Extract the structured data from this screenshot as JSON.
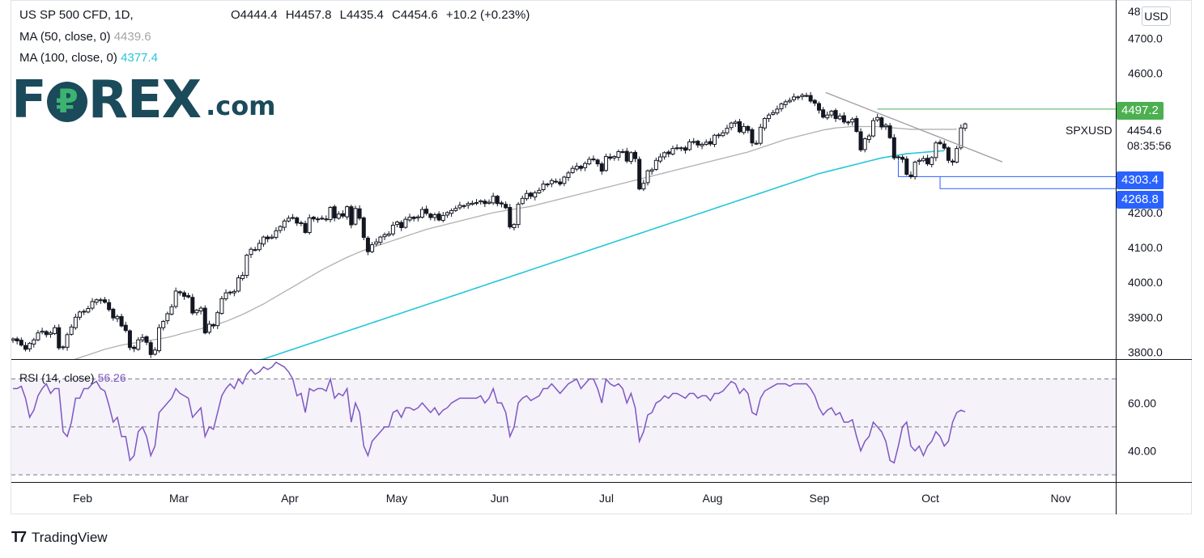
{
  "legend": {
    "symbol_line": "US SP 500 CFD, 1D,",
    "ohlc": {
      "o": "O4444.4",
      "h": "H4457.8",
      "l": "L4435.4",
      "c": "C4454.6",
      "chg": "+10.2 (+0.23%)"
    },
    "ma50_label": "MA (50, close, 0)",
    "ma50_value": "4439.6",
    "ma100_label": "MA (100, close, 0)",
    "ma100_value": "4377.4",
    "rsi_label": "RSI (14, close)",
    "rsi_value": "56.26"
  },
  "logo": {
    "pre": "F",
    "post": "REX",
    "suffix": ".com"
  },
  "currency_button": "USD",
  "symbol": "SPXUSD",
  "last_price": "4454.6",
  "countdown": "08:35:56",
  "price_tags": [
    {
      "label": "4497.2",
      "color": "#4caf50",
      "value": 4497.2
    },
    {
      "label": "4303.4",
      "color": "#2962ff",
      "value": 4303.4
    },
    {
      "label": "4268.8",
      "color": "#2962ff",
      "value": 4268.8
    }
  ],
  "branding": "TradingView",
  "chart_data": {
    "type": "candlestick",
    "title": "US SP 500 CFD, 1D",
    "price_axis": {
      "ticks": [
        "4700.0",
        "4600.0",
        "4200.0",
        "4100.0",
        "4000.0",
        "3900.0",
        "3800.0"
      ],
      "tick_values": [
        4700,
        4600,
        4200,
        4100,
        4000,
        3900,
        3800
      ],
      "ylim": [
        3780,
        4810
      ],
      "top_partial": "48"
    },
    "x_axis": {
      "labels": [
        "Feb",
        "Mar",
        "Apr",
        "May",
        "Jun",
        "Jul",
        "Aug",
        "Sep",
        "Oct",
        "Nov"
      ]
    },
    "close_series": [
      3838,
      3832,
      3820,
      3808,
      3825,
      3835,
      3855,
      3860,
      3850,
      3855,
      3870,
      3812,
      3815,
      3850,
      3872,
      3900,
      3915,
      3916,
      3925,
      3945,
      3950,
      3948,
      3943,
      3922,
      3898,
      3902,
      3875,
      3862,
      3813,
      3810,
      3835,
      3842,
      3828,
      3793,
      3806,
      3870,
      3888,
      3910,
      3930,
      3975,
      3970,
      3960,
      3958,
      3912,
      3920,
      3926,
      3855,
      3880,
      3875,
      3913,
      3953,
      3970,
      3971,
      3974,
      4013,
      4020,
      4078,
      4095,
      4093,
      4112,
      4130,
      4125,
      4130,
      4148,
      4160,
      4176,
      4184,
      4186,
      4170,
      4171,
      4143,
      4185,
      4182,
      4182,
      4184,
      4180,
      4215,
      4185,
      4196,
      4190,
      4217,
      4165,
      4212,
      4184,
      4129,
      4088,
      4108,
      4116,
      4130,
      4137,
      4139,
      4164,
      4173,
      4157,
      4181,
      4187,
      4183,
      4188,
      4209,
      4198,
      4186,
      4194,
      4179,
      4192,
      4200,
      4206,
      4212,
      4221,
      4220,
      4226,
      4227,
      4229,
      4234,
      4226,
      4230,
      4247,
      4226,
      4225,
      4214,
      4159,
      4166,
      4224,
      4241,
      4255,
      4247,
      4257,
      4264,
      4282,
      4282,
      4292,
      4288,
      4282,
      4302,
      4314,
      4327,
      4333,
      4327,
      4341,
      4353,
      4353,
      4340,
      4319,
      4361,
      4356,
      4361,
      4375,
      4374,
      4348,
      4372,
      4355,
      4268,
      4284,
      4320,
      4323,
      4350,
      4360,
      4372,
      4369,
      4384,
      4386,
      4386,
      4379,
      4403,
      4404,
      4394,
      4396,
      4402,
      4397,
      4422,
      4423,
      4429,
      4442,
      4457,
      4460,
      4432,
      4447,
      4436,
      4400,
      4398,
      4445,
      4470,
      4480,
      4487,
      4497,
      4512,
      4518,
      4522,
      4532,
      4532,
      4537,
      4536,
      4520,
      4514,
      4494,
      4474,
      4480,
      4491,
      4470,
      4477,
      4460,
      4460,
      4468,
      4433,
      4380,
      4412,
      4420,
      4464,
      4473,
      4446,
      4451,
      4415,
      4357,
      4360,
      4353,
      4310,
      4303,
      4345,
      4350,
      4355,
      4340,
      4358,
      4400,
      4398,
      4385,
      4350,
      4345,
      4384,
      4443,
      4454.6
    ],
    "ma50": [
      3720,
      3724,
      3728,
      3732,
      3736,
      3740,
      3744,
      3748,
      3752,
      3756,
      3760,
      3764,
      3768,
      3772,
      3776,
      3780,
      3784,
      3788,
      3792,
      3796,
      3800,
      3804,
      3808,
      3811,
      3814,
      3817,
      3820,
      3822,
      3824,
      3826,
      3828,
      3830,
      3832,
      3834,
      3836,
      3838,
      3840,
      3842,
      3845,
      3848,
      3852,
      3855,
      3858,
      3861,
      3864,
      3867,
      3870,
      3873,
      3876,
      3880,
      3884,
      3888,
      3893,
      3898,
      3903,
      3908,
      3914,
      3920,
      3926,
      3932,
      3938,
      3945,
      3952,
      3959,
      3966,
      3973,
      3980,
      3987,
      3994,
      4001,
      4008,
      4015,
      4022,
      4029,
      4036,
      4042,
      4048,
      4054,
      4060,
      4066,
      4072,
      4077,
      4082,
      4087,
      4092,
      4096,
      4100,
      4104,
      4108,
      4112,
      4116,
      4120,
      4124,
      4128,
      4132,
      4136,
      4140,
      4144,
      4148,
      4152,
      4155,
      4158,
      4161,
      4164,
      4167,
      4170,
      4173,
      4176,
      4179,
      4182,
      4185,
      4188,
      4191,
      4194,
      4197,
      4200,
      4202,
      4204,
      4206,
      4208,
      4210,
      4212,
      4214,
      4216,
      4218,
      4221,
      4224,
      4227,
      4230,
      4233,
      4236,
      4239,
      4242,
      4245,
      4248,
      4251,
      4254,
      4257,
      4260,
      4263,
      4266,
      4269,
      4272,
      4275,
      4278,
      4281,
      4284,
      4287,
      4290,
      4293,
      4296,
      4299,
      4302,
      4305,
      4308,
      4311,
      4314,
      4317,
      4320,
      4323,
      4326,
      4329,
      4332,
      4335,
      4338,
      4341,
      4344,
      4347,
      4350,
      4353,
      4356,
      4359,
      4362,
      4365,
      4368,
      4371,
      4374,
      4378,
      4382,
      4386,
      4390,
      4394,
      4398,
      4402,
      4406,
      4410,
      4413,
      4416,
      4419,
      4422,
      4425,
      4428,
      4431,
      4434,
      4437,
      4439,
      4441,
      4443,
      4444,
      4445,
      4446,
      4447,
      4447,
      4447,
      4447,
      4447,
      4447,
      4447,
      4446,
      4445,
      4444,
      4443,
      4442,
      4441,
      4440,
      4439,
      4439,
      4439,
      4439,
      4439,
      4439,
      4439,
      4439,
      4439,
      4439,
      4439,
      4439.6
    ],
    "ma100": [
      3600,
      3603,
      3606,
      3609,
      3612,
      3615,
      3618,
      3621,
      3624,
      3627,
      3630,
      3633,
      3636,
      3639,
      3642,
      3645,
      3648,
      3651,
      3654,
      3657,
      3660,
      3663,
      3666,
      3669,
      3672,
      3675,
      3678,
      3681,
      3684,
      3687,
      3690,
      3693,
      3696,
      3699,
      3702,
      3705,
      3708,
      3711,
      3714,
      3717,
      3720,
      3723,
      3726,
      3729,
      3732,
      3735,
      3738,
      3741,
      3744,
      3747,
      3750,
      3753,
      3756,
      3759,
      3762,
      3765,
      3768,
      3771,
      3774,
      3777,
      3780,
      3784,
      3788,
      3792,
      3796,
      3800,
      3804,
      3808,
      3812,
      3816,
      3820,
      3824,
      3828,
      3832,
      3836,
      3840,
      3844,
      3848,
      3852,
      3856,
      3860,
      3864,
      3868,
      3872,
      3876,
      3880,
      3884,
      3888,
      3892,
      3896,
      3900,
      3904,
      3908,
      3912,
      3916,
      3920,
      3924,
      3928,
      3932,
      3936,
      3940,
      3944,
      3948,
      3952,
      3956,
      3960,
      3964,
      3968,
      3972,
      3976,
      3980,
      3984,
      3988,
      3992,
      3996,
      4000,
      4004,
      4008,
      4012,
      4016,
      4020,
      4024,
      4028,
      4032,
      4036,
      4040,
      4044,
      4048,
      4052,
      4056,
      4060,
      4064,
      4068,
      4072,
      4076,
      4080,
      4084,
      4088,
      4092,
      4096,
      4100,
      4104,
      4108,
      4112,
      4116,
      4120,
      4124,
      4128,
      4132,
      4136,
      4140,
      4144,
      4148,
      4152,
      4156,
      4160,
      4164,
      4168,
      4172,
      4176,
      4180,
      4184,
      4188,
      4192,
      4196,
      4200,
      4204,
      4208,
      4212,
      4216,
      4220,
      4224,
      4228,
      4232,
      4236,
      4240,
      4244,
      4248,
      4252,
      4256,
      4260,
      4264,
      4268,
      4272,
      4276,
      4280,
      4284,
      4288,
      4292,
      4296,
      4300,
      4304,
      4308,
      4312,
      4315,
      4318,
      4321,
      4324,
      4327,
      4330,
      4333,
      4336,
      4339,
      4342,
      4345,
      4348,
      4351,
      4354,
      4357,
      4359,
      4361,
      4363,
      4365,
      4367,
      4369,
      4370,
      4371,
      4372,
      4373,
      4374,
      4375,
      4376,
      4377,
      4377.4
    ],
    "rsi": {
      "ticks": [
        "60.00",
        "40.00"
      ],
      "tick_values": [
        60,
        40
      ],
      "levels": [
        70,
        50,
        30
      ],
      "ylim": [
        27,
        78
      ],
      "values": [
        66,
        66,
        67,
        62,
        54,
        57,
        63,
        66,
        68,
        64,
        66,
        66,
        48,
        46,
        52,
        62,
        62,
        66,
        66,
        68,
        69,
        66,
        65,
        59,
        52,
        54,
        46,
        46,
        36,
        38,
        48,
        50,
        46,
        38,
        42,
        56,
        58,
        60,
        62,
        66,
        64,
        63,
        62,
        54,
        56,
        58,
        46,
        50,
        49,
        56,
        63,
        66,
        68,
        66,
        70,
        68,
        72,
        74,
        72,
        73,
        75,
        74,
        75,
        77,
        76,
        75,
        73,
        70,
        63,
        64,
        56,
        66,
        65,
        66,
        66,
        65,
        70,
        62,
        64,
        63,
        66,
        52,
        60,
        56,
        42,
        38,
        44,
        46,
        48,
        50,
        50,
        56,
        57,
        54,
        58,
        58,
        57,
        58,
        60,
        58,
        56,
        58,
        55,
        57,
        58,
        60,
        61,
        62,
        62,
        62,
        62,
        62,
        63,
        60,
        62,
        66,
        60,
        60,
        56,
        46,
        50,
        60,
        62,
        63,
        61,
        62,
        63,
        66,
        66,
        68,
        66,
        64,
        66,
        68,
        69,
        70,
        66,
        68,
        70,
        70,
        66,
        60,
        70,
        68,
        67,
        68,
        66,
        60,
        64,
        58,
        44,
        48,
        55,
        56,
        60,
        61,
        63,
        62,
        64,
        64,
        63,
        62,
        64,
        64,
        62,
        63,
        63,
        61,
        64,
        64,
        65,
        67,
        69,
        68,
        64,
        66,
        64,
        56,
        55,
        62,
        65,
        66,
        67,
        68,
        68,
        68,
        67,
        68,
        68,
        68,
        68,
        66,
        63,
        58,
        55,
        57,
        58,
        55,
        56,
        52,
        52,
        53,
        46,
        40,
        44,
        46,
        52,
        50,
        48,
        44,
        36,
        35,
        42,
        50,
        52,
        42,
        40,
        42,
        38,
        42,
        44,
        48,
        46,
        42,
        44,
        52,
        56,
        57,
        56.26
      ]
    },
    "trendline": {
      "from_index": 195,
      "from_value": 4540,
      "to_index": 236,
      "to_value": 4364
    },
    "support_boxes": [
      {
        "from_index": 219,
        "to_index": 260,
        "top": 4497.2,
        "bottom": 4497.2,
        "color": "#4caf50"
      },
      {
        "from_index": 212,
        "to_index": 260,
        "top": 4350,
        "bottom": 4303.4,
        "color": "#2962ff"
      },
      {
        "from_index": 222,
        "to_index": 260,
        "top": 4303.4,
        "bottom": 4268.8,
        "color": "#2962ff"
      }
    ]
  }
}
